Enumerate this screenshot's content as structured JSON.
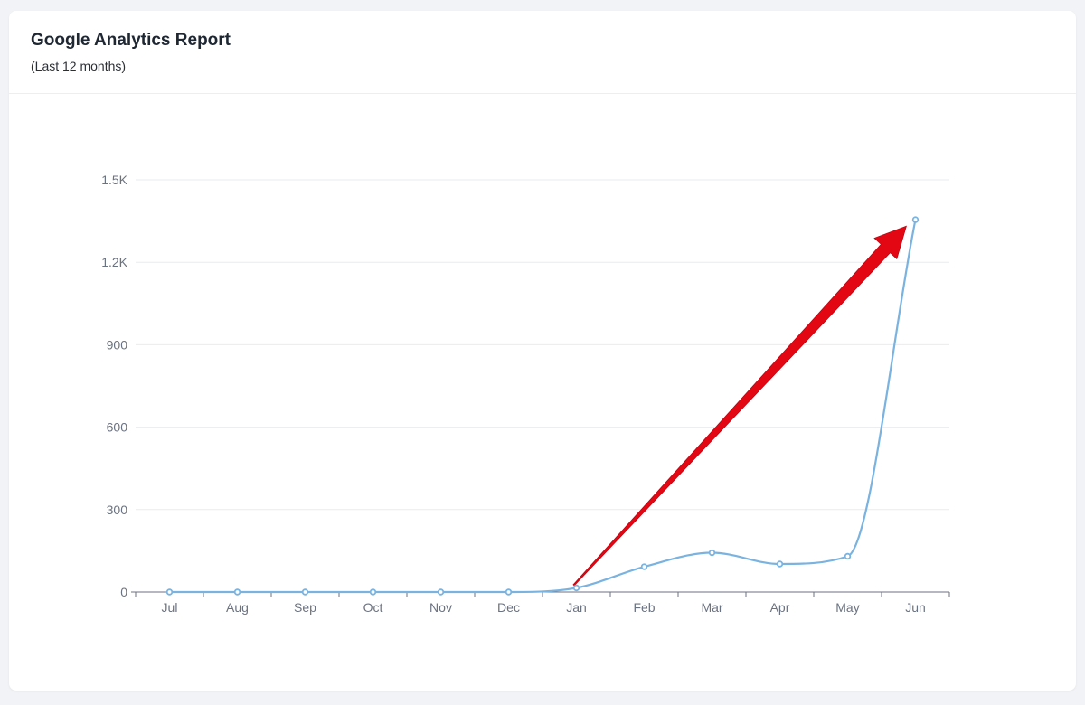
{
  "header": {
    "title": "Google Analytics Report",
    "subtitle": "(Last 12 months)"
  },
  "colors": {
    "line": "#7ab3e0",
    "arrow": "#e30613",
    "grid": "#e9ebee",
    "axis": "#6b7280"
  },
  "chart_data": {
    "type": "line",
    "categories": [
      "Jul",
      "Aug",
      "Sep",
      "Oct",
      "Nov",
      "Dec",
      "Jan",
      "Feb",
      "Mar",
      "Apr",
      "May",
      "Jun"
    ],
    "series": [
      {
        "values": [
          0,
          0,
          0,
          0,
          0,
          0,
          15,
          92,
          143,
          102,
          130,
          1355
        ]
      }
    ],
    "ylim": [
      0,
      1500
    ],
    "y_ticks": [
      0,
      300,
      600,
      900,
      1200,
      1500
    ],
    "y_tick_labels": [
      "0",
      "300",
      "600",
      "900",
      "1.2K",
      "1.5K"
    ],
    "grid": true,
    "annotation": {
      "type": "arrow",
      "from_category": "Jan",
      "to_category": "Jun",
      "color": "#e30613"
    }
  }
}
